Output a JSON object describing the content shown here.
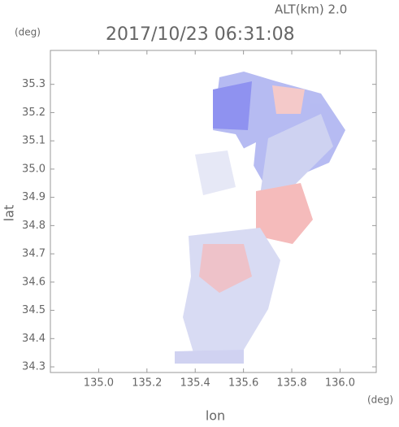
{
  "chart_data": {
    "type": "map",
    "altitude_label": "ALT(km)  2.0",
    "title": "2017/10/23 06:31:08",
    "y_unit": "(deg)",
    "x_unit": "(deg)",
    "ylabel": "lat",
    "xlabel": "lon",
    "xlim": [
      134.8,
      136.15
    ],
    "xticks": [
      {
        "value": 135,
        "label": "135.0"
      },
      135.2,
      135.4,
      135.6,
      135.8,
      {
        "value": 136,
        "label": "136.0"
      }
    ],
    "ylim": [
      34.28,
      35.42
    ],
    "yticks": [
      34.3,
      34.4,
      34.5,
      34.6,
      34.7,
      34.8,
      34.9,
      {
        "value": 35,
        "label": "35.0"
      },
      35.1,
      35.2,
      35.3
    ]
  }
}
